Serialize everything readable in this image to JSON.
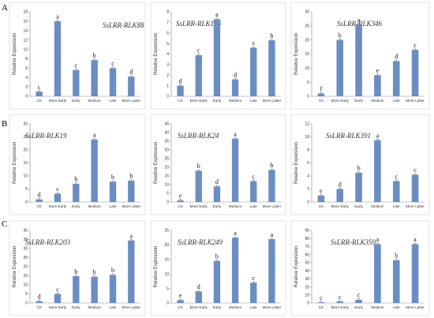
{
  "row_labels": [
    "A",
    "B",
    "C"
  ],
  "chart_data": [
    {
      "type": "bar",
      "title": "SsLRR-RLK88",
      "ylabel": "Relative Expression",
      "categories": [
        "CK",
        "More Early",
        "Early",
        "Medium",
        "Late",
        "More Latter"
      ],
      "values": [
        1,
        16,
        5.6,
        7.7,
        6,
        4.2
      ],
      "letters": [
        "c",
        "a",
        "c",
        "b",
        "c",
        "d"
      ],
      "ylim": [
        0,
        18
      ],
      "yticks": [
        0,
        2,
        4,
        6,
        8,
        10,
        12,
        14,
        16,
        18
      ]
    },
    {
      "type": "bar",
      "title": "SsLRR-RLK146",
      "ylabel": "Relative Expression",
      "categories": [
        "CK",
        "More Early",
        "Early",
        "Medium",
        "Late",
        "More Latter"
      ],
      "values": [
        1,
        3.9,
        7.3,
        1.6,
        4.6,
        5.3
      ],
      "letters": [
        "d",
        "c",
        "a",
        "d",
        "c",
        "b"
      ],
      "ylim": [
        0,
        8
      ],
      "yticks": [
        0,
        1,
        2,
        3,
        4,
        5,
        6,
        7,
        8
      ]
    },
    {
      "type": "bar",
      "title": "SsLRR-RLK346",
      "ylabel": "Relative Expression",
      "categories": [
        "CK",
        "More Early",
        "Early",
        "Medium",
        "Late",
        "More Latter"
      ],
      "values": [
        1,
        20,
        25.5,
        7.5,
        12.5,
        16.5
      ],
      "letters": [
        "f",
        "b",
        "a",
        "e",
        "d",
        "c"
      ],
      "ylim": [
        0,
        30
      ],
      "yticks": [
        0,
        5,
        10,
        15,
        20,
        25,
        30
      ]
    },
    {
      "type": "bar",
      "title": "SsLRR-RLK19",
      "ylabel": "Relative Expression",
      "categories": [
        "CK",
        "More Early",
        "Early",
        "Medium",
        "Late",
        "More Latter"
      ],
      "values": [
        1,
        3.2,
        7,
        24,
        7.8,
        8.2
      ],
      "letters": [
        "d",
        "c",
        "b",
        "a",
        "b",
        "b"
      ],
      "ylim": [
        0,
        30
      ],
      "yticks": [
        0,
        5,
        10,
        15,
        20,
        25,
        30
      ]
    },
    {
      "type": "bar",
      "title": "SsLRR-RLK24",
      "ylabel": "Relative Expression",
      "categories": [
        "CK",
        "More Early",
        "Early",
        "Medium",
        "Late",
        "More Latter"
      ],
      "values": [
        1,
        18,
        9,
        36.5,
        12,
        18.5
      ],
      "letters": [
        "e",
        "b",
        "d",
        "a",
        "c",
        "b"
      ],
      "ylim": [
        0,
        45
      ],
      "yticks": [
        0,
        5,
        10,
        15,
        20,
        25,
        30,
        35,
        40,
        45
      ]
    },
    {
      "type": "bar",
      "title": "SsLRR-RLK391",
      "ylabel": "Relative Expression",
      "categories": [
        "CK",
        "More Early",
        "Early",
        "Medium",
        "Late",
        "More Latter"
      ],
      "values": [
        1,
        2,
        4.5,
        9.5,
        3.2,
        4.2
      ],
      "letters": [
        "e",
        "d",
        "b",
        "a",
        "c",
        "c"
      ],
      "ylim": [
        0,
        12
      ],
      "yticks": [
        0,
        2,
        4,
        6,
        8,
        10,
        12
      ]
    },
    {
      "type": "bar",
      "title": "SsLRR-RLK203",
      "ylabel": "Relative Expression",
      "categories": [
        "CK",
        "More Early",
        "Early",
        "Medium",
        "Late",
        "More Latter"
      ],
      "values": [
        1,
        5,
        14.8,
        14.5,
        15.5,
        34.5
      ],
      "letters": [
        "d",
        "c",
        "b",
        "b",
        "b",
        "a"
      ],
      "ylim": [
        0,
        40
      ],
      "yticks": [
        0,
        5,
        10,
        15,
        20,
        25,
        30,
        35,
        40
      ]
    },
    {
      "type": "bar",
      "title": "SsLRR-RLK249",
      "ylabel": "Relative Expression",
      "categories": [
        "CK",
        "More Early",
        "Early",
        "Medium",
        "Late",
        "More Latter"
      ],
      "values": [
        1,
        4,
        14.5,
        22.5,
        7,
        22
      ],
      "letters": [
        "e",
        "d",
        "b",
        "a",
        "c",
        "a"
      ],
      "ylim": [
        0,
        25
      ],
      "yticks": [
        0,
        5,
        10,
        15,
        20,
        25
      ]
    },
    {
      "type": "bar",
      "title": "SsLRR-RLK359",
      "ylabel": "Relative Expression",
      "categories": [
        "CK",
        "More Early",
        "Early",
        "Medium",
        "Late",
        "More Latter"
      ],
      "values": [
        1,
        2,
        4,
        73,
        53,
        73
      ],
      "letters": [
        "c",
        "c",
        "c",
        "a",
        "b",
        "a"
      ],
      "ylim": [
        0,
        90
      ],
      "yticks": [
        0,
        10,
        20,
        30,
        40,
        50,
        60,
        70,
        80,
        90
      ]
    }
  ]
}
